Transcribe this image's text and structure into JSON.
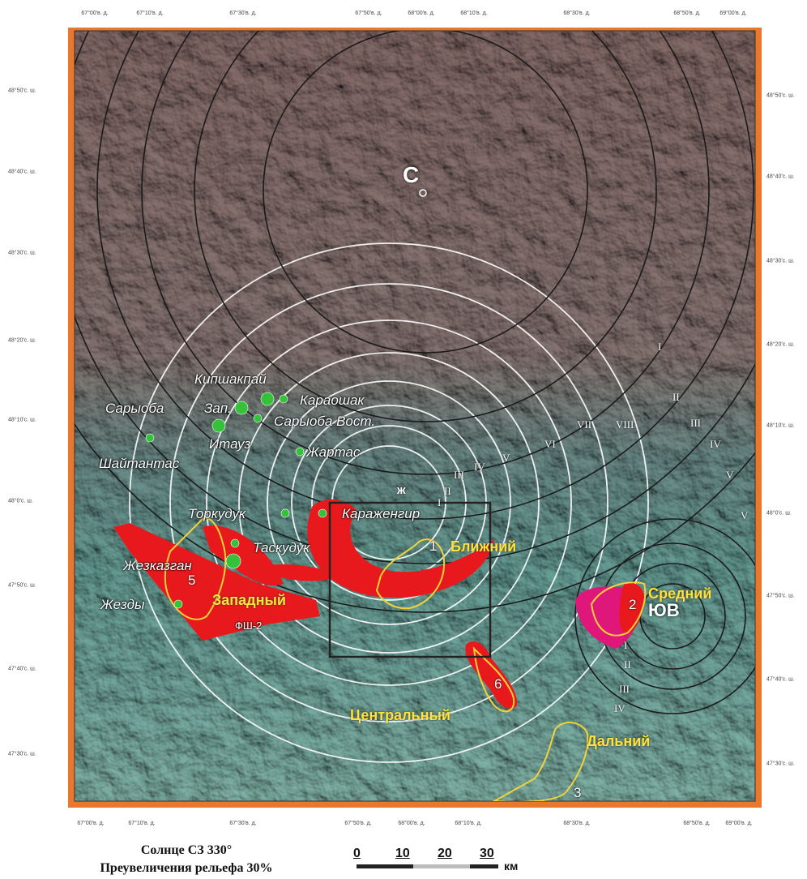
{
  "axes": {
    "top_ticks": [
      "67°00'в. д.",
      "67°10'в. д.",
      "67°30'в. д.",
      "67°50'в. д.",
      "68°00'в. д.",
      "68°10'в. д.",
      "68°30'в. д.",
      "68°50'в. д.",
      "69°00'в. д."
    ],
    "bottom_ticks": [
      "67°00'в. д.",
      "67°10'в. д.",
      "67°30'в. д.",
      "67°50'в. д.",
      "68°00'в. д.",
      "68°10'в. д.",
      "68°30'в. д.",
      "68°50'в. д.",
      "69°00'в. д."
    ],
    "left_ticks": [
      "48°50'с. ш.",
      "48°40'с. ш.",
      "48°30'с. ш.",
      "48°20'с. ш.",
      "48°10'с. ш.",
      "48°0'с. ш.",
      "47°50'с. ш.",
      "47°40'с. ш.",
      "47°30'с. ш."
    ],
    "right_ticks": [
      "48°50'с. ш.",
      "48°40'с. ш.",
      "48°30'с. ш.",
      "48°20'с. ш.",
      "48°10'с. ш.",
      "48°0'с. ш.",
      "47°50'с. ш.",
      "47°40'с. ш.",
      "47°30'с. ш."
    ]
  },
  "centers": {
    "north": "С",
    "southeast": "ЮВ",
    "zh": "ж"
  },
  "deposits": [
    "Кипшакпай",
    "Сарыоба",
    "Зап.",
    "Караошак",
    "Сарыоба Вост.",
    "Итауз",
    "Жартас",
    "Шайтантас",
    "Торкудук",
    "Караженгир",
    "Жезказган",
    "Жезды",
    "Таскудук",
    "ФШ-2"
  ],
  "areas": [
    "Ближний",
    "Средний",
    "Западный",
    "Центральный",
    "Дальний"
  ],
  "area_numbers": [
    "1",
    "2",
    "3",
    "5",
    "6"
  ],
  "roman_white": [
    "VIII",
    "VII",
    "VI",
    "V",
    "IV",
    "III",
    "II",
    "I"
  ],
  "roman_outer": [
    "I",
    "II",
    "III",
    "IV",
    "V"
  ],
  "roman_se": [
    "I",
    "II",
    "III",
    "IV",
    "V"
  ],
  "caption": {
    "line1": "Солнце СЗ 330°",
    "line2": "Преувеличения рельефа 30%"
  },
  "scale": {
    "values": [
      "0",
      "10",
      "20",
      "30"
    ],
    "unit": "км"
  }
}
